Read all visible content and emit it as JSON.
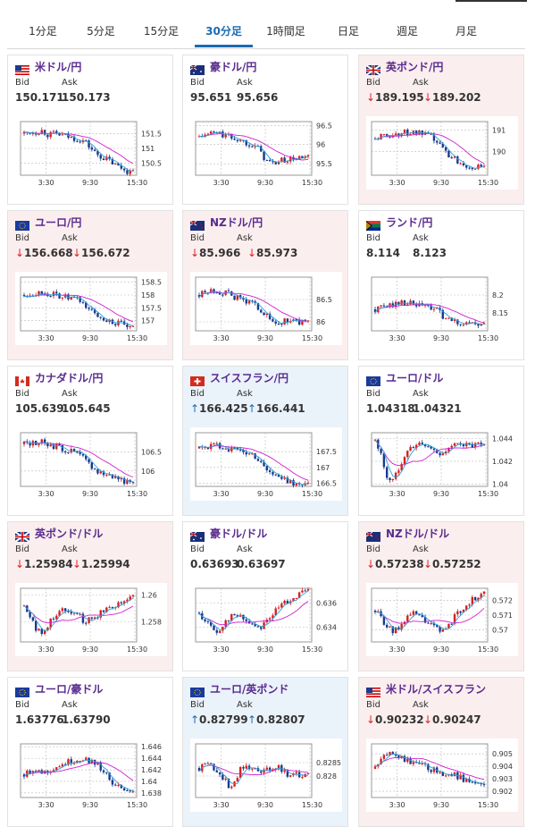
{
  "tabs": [
    {
      "label": "1分足",
      "active": false
    },
    {
      "label": "5分足",
      "active": false
    },
    {
      "label": "15分足",
      "active": false
    },
    {
      "label": "30分足",
      "active": true
    },
    {
      "label": "1時間足",
      "active": false
    },
    {
      "label": "日足",
      "active": false
    },
    {
      "label": "週足",
      "active": false
    },
    {
      "label": "月足",
      "active": false
    }
  ],
  "labels": {
    "bid": "Bid",
    "ask": "Ask"
  },
  "colors": {
    "up_candle": "#d62020",
    "down_candle": "#1a3a8c",
    "ma_short": "#2aa0d8",
    "ma_long": "#d020d0",
    "down_bg": "#fbeeee",
    "up_bg": "#eaf2fa",
    "accent": "#1a6bb5"
  },
  "pairs": [
    {
      "name": "米ドル/円",
      "flag": "us-flag",
      "bid": "150.171",
      "ask": "150.173",
      "dir": "none",
      "x_ticks": [
        "3:30",
        "9:30",
        "15:30"
      ],
      "y_ticks": [
        "151.5",
        "151",
        "150.5"
      ],
      "y_range": [
        150.1,
        151.9
      ]
    },
    {
      "name": "豪ドル/円",
      "flag": "au-flag",
      "bid": "95.651",
      "ask": "95.656",
      "dir": "none",
      "x_ticks": [
        "3:30",
        "9:30",
        "15:30"
      ],
      "y_ticks": [
        "96.5",
        "96",
        "95.5"
      ],
      "y_range": [
        95.2,
        96.6
      ]
    },
    {
      "name": "英ポンド/円",
      "flag": "gb-flag",
      "bid": "189.195",
      "ask": "189.202",
      "dir": "down",
      "x_ticks": [
        "3:30",
        "9:30",
        "15:30"
      ],
      "y_ticks": [
        "191",
        "190"
      ],
      "y_range": [
        188.9,
        191.4
      ]
    },
    {
      "name": "ユーロ/円",
      "flag": "eu-flag",
      "bid": "156.668",
      "ask": "156.672",
      "dir": "down",
      "x_ticks": [
        "3:30",
        "9:30",
        "15:30"
      ],
      "y_ticks": [
        "158.5",
        "158",
        "157.5",
        "157"
      ],
      "y_range": [
        156.6,
        158.7
      ]
    },
    {
      "name": "NZドル/円",
      "flag": "nz-flag",
      "bid": "85.966",
      "ask": "85.973",
      "dir": "down",
      "x_ticks": [
        "3:30",
        "9:30",
        "15:30"
      ],
      "y_ticks": [
        "86.5",
        "86"
      ],
      "y_range": [
        85.8,
        87.0
      ]
    },
    {
      "name": "ランド/円",
      "flag": "za-flag",
      "bid": "8.114",
      "ask": "8.123",
      "dir": "none",
      "x_ticks": [
        "3:30",
        "9:30",
        "15:30"
      ],
      "y_ticks": [
        "8.2",
        "8.15"
      ],
      "y_range": [
        8.1,
        8.25
      ]
    },
    {
      "name": "カナダドル/円",
      "flag": "ca-flag",
      "bid": "105.639",
      "ask": "105.645",
      "dir": "none",
      "x_ticks": [
        "3:30",
        "9:30",
        "15:30"
      ],
      "y_ticks": [
        "106.5",
        "106"
      ],
      "y_range": [
        105.6,
        107.0
      ]
    },
    {
      "name": "スイスフラン/円",
      "flag": "ch-flag",
      "bid": "166.425",
      "ask": "166.441",
      "dir": "up",
      "x_ticks": [
        "3:30",
        "9:30",
        "15:30"
      ],
      "y_ticks": [
        "167.5",
        "167",
        "166.5"
      ],
      "y_range": [
        166.4,
        168.1
      ]
    },
    {
      "name": "ユーロ/ドル",
      "flag": "eu-flag",
      "bid": "1.04318",
      "ask": "1.04321",
      "dir": "none",
      "x_ticks": [
        "3:30",
        "9:30",
        "15:30"
      ],
      "y_ticks": [
        "1.044",
        "1.042",
        "1.04"
      ],
      "y_range": [
        1.0398,
        1.0445
      ]
    },
    {
      "name": "英ポンド/ドル",
      "flag": "gb-flag",
      "bid": "1.25984",
      "ask": "1.25994",
      "dir": "down",
      "x_ticks": [
        "3:30",
        "9:30",
        "15:30"
      ],
      "y_ticks": [
        "1.26",
        "1.258"
      ],
      "y_range": [
        1.2565,
        1.2605
      ]
    },
    {
      "name": "豪ドル/ドル",
      "flag": "au-flag",
      "bid": "0.63693",
      "ask": "0.63697",
      "dir": "none",
      "x_ticks": [
        "3:30",
        "9:30",
        "15:30"
      ],
      "y_ticks": [
        "0.636",
        "0.634"
      ],
      "y_range": [
        0.6328,
        0.6372
      ]
    },
    {
      "name": "NZドル/ドル",
      "flag": "nz-flag",
      "bid": "0.57238",
      "ask": "0.57252",
      "dir": "down",
      "x_ticks": [
        "3:30",
        "9:30",
        "15:30"
      ],
      "y_ticks": [
        "0.572",
        "0.571",
        "0.57"
      ],
      "y_range": [
        0.5692,
        0.5728
      ]
    },
    {
      "name": "ユーロ/豪ドル",
      "flag": "eu-flag",
      "bid": "1.63776",
      "ask": "1.63790",
      "dir": "none",
      "x_ticks": [
        "3:30",
        "9:30",
        "15:30"
      ],
      "y_ticks": [
        "1.646",
        "1.644",
        "1.642",
        "1.64",
        "1.638"
      ],
      "y_range": [
        1.6372,
        1.6465
      ]
    },
    {
      "name": "ユーロ/英ポンド",
      "flag": "eu-flag",
      "bid": "0.82799",
      "ask": "0.82807",
      "dir": "up",
      "x_ticks": [
        "3:30",
        "9:30",
        "15:30"
      ],
      "y_ticks": [
        "0.8285",
        "0.828"
      ],
      "y_range": [
        0.8272,
        0.8292
      ]
    },
    {
      "name": "米ドル/スイスフラン",
      "flag": "us-flag",
      "bid": "0.90232",
      "ask": "0.90247",
      "dir": "down",
      "x_ticks": [
        "3:30",
        "9:30",
        "15:30"
      ],
      "y_ticks": [
        "0.905",
        "0.904",
        "0.903",
        "0.902"
      ],
      "y_range": [
        0.9015,
        0.9058
      ]
    }
  ],
  "chart_data": [
    {
      "type": "candlestick",
      "pair": "米ドル/円",
      "trend": [
        151.5,
        151.55,
        151.55,
        151.6,
        151.45,
        151.5,
        151.45,
        151.4,
        151.35,
        151.3,
        151.25,
        151.0,
        150.8,
        150.7,
        150.6,
        150.45,
        150.35,
        150.25,
        150.17
      ]
    },
    {
      "type": "candlestick",
      "pair": "豪ドル/円",
      "trend": [
        96.2,
        96.25,
        96.3,
        96.3,
        96.25,
        96.2,
        96.15,
        96.1,
        96.05,
        96.0,
        95.85,
        95.6,
        95.5,
        95.55,
        95.6,
        95.6,
        95.65,
        95.65,
        95.65
      ]
    },
    {
      "type": "candlestick",
      "pair": "英ポンド/円",
      "trend": [
        190.6,
        190.7,
        190.75,
        190.8,
        190.85,
        190.9,
        190.9,
        190.85,
        190.8,
        190.7,
        190.5,
        190.2,
        189.9,
        189.7,
        189.5,
        189.4,
        189.3,
        189.25,
        189.2
      ]
    },
    {
      "type": "candlestick",
      "pair": "ユーロ/円",
      "trend": [
        158.0,
        158.05,
        158.1,
        158.1,
        158.05,
        158.0,
        157.95,
        157.9,
        157.85,
        157.8,
        157.6,
        157.4,
        157.2,
        157.1,
        157.0,
        156.9,
        156.85,
        156.75,
        156.67
      ]
    },
    {
      "type": "candlestick",
      "pair": "NZドル/円",
      "trend": [
        86.6,
        86.65,
        86.7,
        86.7,
        86.65,
        86.6,
        86.55,
        86.5,
        86.45,
        86.4,
        86.3,
        86.15,
        86.0,
        85.95,
        86.0,
        86.05,
        86.0,
        85.98,
        85.97
      ]
    },
    {
      "type": "candlestick",
      "pair": "ランド/円",
      "trend": [
        8.16,
        8.165,
        8.17,
        8.175,
        8.18,
        8.18,
        8.175,
        8.17,
        8.17,
        8.165,
        8.16,
        8.145,
        8.13,
        8.125,
        8.12,
        8.125,
        8.12,
        8.115,
        8.114
      ]
    },
    {
      "type": "candlestick",
      "pair": "カナダドル/円",
      "trend": [
        106.7,
        106.72,
        106.75,
        106.75,
        106.7,
        106.65,
        106.6,
        106.55,
        106.5,
        106.45,
        106.3,
        106.15,
        106.0,
        105.95,
        105.9,
        105.85,
        105.8,
        105.7,
        105.64
      ]
    },
    {
      "type": "candlestick",
      "pair": "スイスフラン/円",
      "trend": [
        167.6,
        167.65,
        167.7,
        167.7,
        167.65,
        167.6,
        167.55,
        167.5,
        167.45,
        167.4,
        167.2,
        167.0,
        166.8,
        166.7,
        166.6,
        166.55,
        166.5,
        166.45,
        166.43
      ]
    },
    {
      "type": "candlestick",
      "pair": "ユーロ/ドル",
      "trend": [
        1.0438,
        1.0425,
        1.0405,
        1.0403,
        1.0415,
        1.0428,
        1.0432,
        1.0435,
        1.0434,
        1.0432,
        1.0428,
        1.0427,
        1.043,
        1.0433,
        1.0437,
        1.0434,
        1.0433,
        1.0434,
        1.0432
      ]
    },
    {
      "type": "candlestick",
      "pair": "英ポンド/ドル",
      "trend": [
        1.2592,
        1.2585,
        1.2575,
        1.257,
        1.2578,
        1.2585,
        1.2588,
        1.259,
        1.2588,
        1.2585,
        1.258,
        1.2582,
        1.2585,
        1.2588,
        1.2591,
        1.2593,
        1.2595,
        1.2597,
        1.2598
      ]
    },
    {
      "type": "candlestick",
      "pair": "豪ドル/ドル",
      "trend": [
        0.6352,
        0.6345,
        0.634,
        0.6335,
        0.6343,
        0.6348,
        0.635,
        0.6348,
        0.6345,
        0.6342,
        0.634,
        0.6345,
        0.635,
        0.6355,
        0.636,
        0.6363,
        0.6366,
        0.6368,
        0.6369
      ]
    },
    {
      "type": "candlestick",
      "pair": "NZドル/ドル",
      "trend": [
        0.5713,
        0.5708,
        0.5702,
        0.5698,
        0.5702,
        0.5708,
        0.5711,
        0.571,
        0.5707,
        0.5704,
        0.5701,
        0.5699,
        0.5703,
        0.5708,
        0.5713,
        0.5717,
        0.572,
        0.5722,
        0.5724
      ]
    },
    {
      "type": "candlestick",
      "pair": "ユーロ/豪ドル",
      "trend": [
        1.6412,
        1.6418,
        1.6422,
        1.6415,
        1.6418,
        1.6425,
        1.6428,
        1.6432,
        1.6435,
        1.6438,
        1.644,
        1.6435,
        1.643,
        1.642,
        1.6405,
        1.6395,
        1.6385,
        1.638,
        1.6378
      ]
    },
    {
      "type": "candlestick",
      "pair": "ユーロ/英ポンド",
      "trend": [
        0.8283,
        0.8285,
        0.8284,
        0.8282,
        0.8279,
        0.8276,
        0.8279,
        0.8283,
        0.8284,
        0.8283,
        0.8281,
        0.8282,
        0.8283,
        0.8284,
        0.8282,
        0.828,
        0.8281,
        0.828,
        0.828
      ]
    },
    {
      "type": "candlestick",
      "pair": "米ドル/スイスフラン",
      "trend": [
        0.9038,
        0.9045,
        0.905,
        0.9052,
        0.9048,
        0.9045,
        0.9043,
        0.9042,
        0.904,
        0.9038,
        0.9036,
        0.9035,
        0.9034,
        0.9033,
        0.9031,
        0.9029,
        0.9027,
        0.9025,
        0.9023
      ]
    }
  ]
}
